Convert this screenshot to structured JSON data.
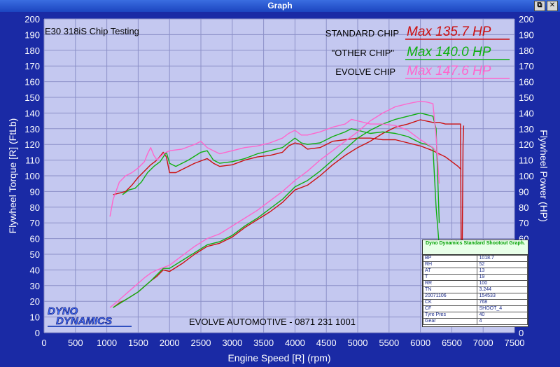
{
  "window": {
    "title": "Graph",
    "buttons": [
      "restore",
      "close"
    ]
  },
  "colors": {
    "standard": "#cc1010",
    "other": "#10b010",
    "evolve": "#ff66cc",
    "plot_bg": "#c4c8f0",
    "grid": "#8c90c8",
    "frame": "#1a2aa5"
  },
  "chart_data": {
    "type": "line",
    "title": "E30 318iS Chip Testing",
    "footer": "EVOLVE AUTOMOTIVE - 0871 231 1001",
    "xlabel": "Engine Speed [R] (rpm)",
    "ylabel_left": "Flywheel Torque [R] (FtLb)",
    "ylabel_right": "Flywheel Power (HP)",
    "xlim": [
      0,
      7500
    ],
    "ylim": [
      0,
      200
    ],
    "xticks": [
      "0",
      "500",
      "1000",
      "1500",
      "2000",
      "2500",
      "3000",
      "3500",
      "4000",
      "4500",
      "5000",
      "5500",
      "6000",
      "6500",
      "7000",
      "7500"
    ],
    "yticks": [
      "0",
      "10",
      "20",
      "30",
      "40",
      "50",
      "60",
      "70",
      "80",
      "90",
      "100",
      "110",
      "120",
      "130",
      "140",
      "150",
      "160",
      "170",
      "180",
      "190",
      "200"
    ],
    "grid": true,
    "legend": [
      {
        "name": "STANDARD CHIP",
        "max": "Max 135.7 HP",
        "color": "#cc1010"
      },
      {
        "name": "\"OTHER CHIP\"",
        "max": "Max 140.0 HP",
        "color": "#10b010"
      },
      {
        "name": "EVOLVE CHIP",
        "max": "Max 147.6 HP",
        "color": "#ff66cc"
      }
    ],
    "series": [
      {
        "name": "STANDARD CHIP",
        "kind": "torque",
        "color": "#cc1010",
        "x": [
          1100,
          1300,
          1400,
          1500,
          1600,
          1700,
          1800,
          1900,
          1950,
          2000,
          2100,
          2200,
          2400,
          2600,
          2700,
          2800,
          3000,
          3200,
          3400,
          3600,
          3800,
          3900,
          4000,
          4100,
          4200,
          4400,
          4600,
          4800,
          5000,
          5200,
          5400,
          5600,
          5800,
          6000,
          6200,
          6400,
          6600,
          6650
        ],
        "y": [
          88,
          90,
          94,
          99,
          103,
          107,
          110,
          115,
          112,
          102,
          102,
          104,
          108,
          111,
          108,
          106,
          107,
          110,
          112,
          113,
          115,
          119,
          121,
          120,
          117,
          118,
          122,
          123,
          124,
          124,
          123,
          123,
          121,
          119,
          116,
          112,
          106,
          104
        ]
      },
      {
        "name": "STANDARD CHIP",
        "kind": "power",
        "color": "#cc1010",
        "x": [
          1100,
          1200,
          1300,
          1500,
          1700,
          1800,
          1900,
          2000,
          2200,
          2400,
          2600,
          2800,
          3000,
          3200,
          3400,
          3600,
          3800,
          3900,
          4000,
          4200,
          4400,
          4600,
          4800,
          5000,
          5200,
          5400,
          5600,
          5800,
          6000,
          6200,
          6300,
          6400,
          6500,
          6600,
          6640,
          6650,
          6660,
          6680,
          6690
        ],
        "y": [
          16,
          19,
          21,
          26,
          33,
          36,
          40,
          39,
          44,
          50,
          55,
          57,
          61,
          67,
          72,
          77,
          83,
          87,
          91,
          94,
          100,
          107,
          113,
          118,
          122,
          127,
          131,
          133,
          135.7,
          134,
          134,
          133,
          133,
          133,
          133,
          50,
          20,
          120,
          132
        ]
      },
      {
        "name": "\"OTHER CHIP\"",
        "kind": "torque",
        "color": "#10b010",
        "x": [
          1250,
          1350,
          1450,
          1550,
          1650,
          1750,
          1850,
          1950,
          2000,
          2100,
          2200,
          2300,
          2500,
          2600,
          2700,
          2800,
          3000,
          3200,
          3400,
          3600,
          3800,
          3900,
          4000,
          4100,
          4200,
          4400,
          4600,
          4800,
          4900,
          5000,
          5200,
          5400,
          5600,
          5800,
          6000,
          6100,
          6200,
          6250,
          6300
        ],
        "y": [
          88,
          91,
          92,
          96,
          102,
          106,
          109,
          115,
          108,
          106,
          108,
          110,
          115,
          116,
          110,
          108,
          109,
          111,
          114,
          116,
          118,
          121,
          124,
          121,
          120,
          121,
          125,
          128,
          130,
          129,
          127,
          128,
          127,
          125,
          121,
          120,
          118,
          80,
          55
        ]
      },
      {
        "name": "\"OTHER CHIP\"",
        "kind": "power",
        "color": "#10b010",
        "x": [
          1100,
          1300,
          1500,
          1700,
          1900,
          2000,
          2200,
          2400,
          2600,
          2800,
          3000,
          3200,
          3400,
          3600,
          3800,
          4000,
          4200,
          4400,
          4600,
          4800,
          5000,
          5200,
          5400,
          5600,
          5800,
          6000,
          6200,
          6250,
          6300
        ],
        "y": [
          16,
          21,
          26,
          33,
          41,
          41,
          46,
          51,
          56,
          58,
          62,
          68,
          73,
          79,
          85,
          93,
          97,
          103,
          110,
          117,
          124,
          129,
          133,
          136,
          138,
          140,
          138,
          130,
          70
        ]
      },
      {
        "name": "EVOLVE CHIP",
        "kind": "torque",
        "color": "#ff66cc",
        "x": [
          1050,
          1100,
          1200,
          1300,
          1400,
          1500,
          1600,
          1650,
          1700,
          1750,
          1800,
          1900,
          1950,
          2000,
          2200,
          2400,
          2500,
          2600,
          2700,
          2800,
          3000,
          3200,
          3400,
          3600,
          3800,
          3900,
          4000,
          4100,
          4200,
          4400,
          4600,
          4800,
          4900,
          5000,
          5200,
          5400,
          5600,
          5800,
          5900,
          6000,
          6200,
          6300
        ],
        "y": [
          74,
          85,
          96,
          100,
          102,
          105,
          109,
          114,
          118,
          113,
          110,
          114,
          115,
          116,
          117,
          120,
          122,
          118,
          116,
          114,
          116,
          118,
          119,
          121,
          124,
          127,
          129,
          126,
          126,
          128,
          131,
          133,
          136,
          135,
          133,
          133,
          132,
          129,
          126,
          123,
          118,
          113
        ]
      },
      {
        "name": "EVOLVE CHIP",
        "kind": "power",
        "color": "#ff66cc",
        "x": [
          1050,
          1200,
          1400,
          1600,
          1700,
          1800,
          2000,
          2200,
          2400,
          2600,
          2800,
          3000,
          3200,
          3400,
          3600,
          3800,
          4000,
          4200,
          4400,
          4600,
          4800,
          5000,
          5200,
          5400,
          5600,
          5800,
          6000,
          6100,
          6200,
          6250,
          6300
        ],
        "y": [
          16,
          21,
          28,
          35,
          38,
          40,
          43,
          49,
          55,
          60,
          63,
          68,
          73,
          78,
          84,
          90,
          97,
          103,
          110,
          116,
          122,
          128,
          135,
          140,
          144,
          146,
          147.6,
          147,
          146,
          125,
          95
        ]
      }
    ],
    "shootout_table": {
      "title": "Dyno Dynamics Standard Shootout Graph.",
      "rows": [
        [
          "BP",
          "1018.7"
        ],
        [
          "RH",
          "52"
        ],
        [
          "AT",
          "13"
        ],
        [
          "T",
          "19"
        ],
        [
          "RR",
          "100"
        ],
        [
          "TN",
          "3.244"
        ],
        [
          "20071106",
          "154533"
        ],
        [
          "CK",
          "768"
        ],
        [
          "CF",
          "SHOOT_4"
        ],
        [
          "Tyre Pres",
          "40"
        ],
        [
          "Gear",
          "4"
        ]
      ]
    },
    "logo": {
      "line1": "DYNO",
      "line2": "DYNAMICS"
    }
  }
}
